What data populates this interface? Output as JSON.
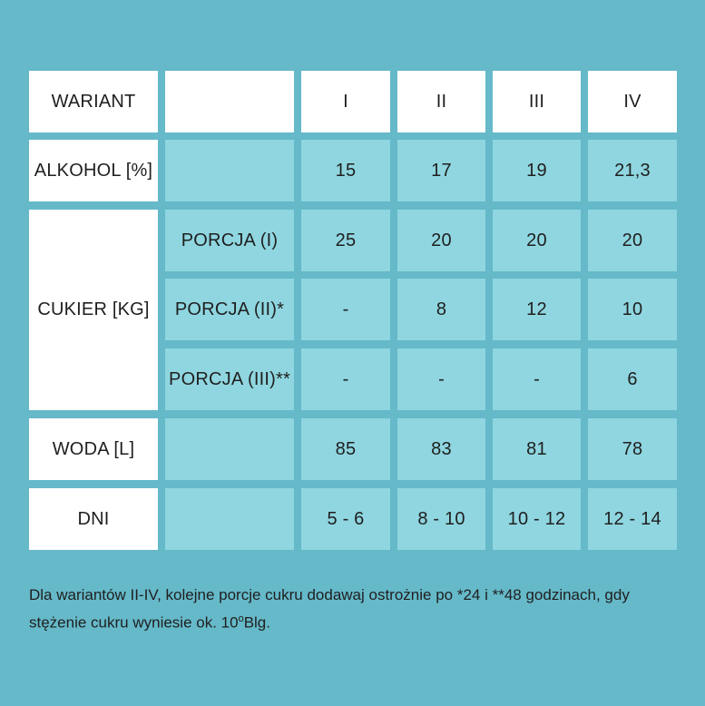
{
  "table": {
    "header": {
      "label": "WARIANT",
      "empty": "",
      "variants": [
        "I",
        "II",
        "III",
        "IV"
      ]
    },
    "rows": {
      "alkohol": {
        "label": "ALKOHOL [%]",
        "values": [
          "15",
          "17",
          "19",
          "21,3"
        ]
      },
      "cukier": {
        "label": "CUKIER [KG]",
        "portions": [
          {
            "label": "PORCJA (I)",
            "values": [
              "25",
              "20",
              "20",
              "20"
            ]
          },
          {
            "label": "PORCJA (II)*",
            "values": [
              "-",
              "8",
              "12",
              "10"
            ]
          },
          {
            "label": "PORCJA (III)**",
            "values": [
              "-",
              "-",
              "-",
              "6"
            ]
          }
        ]
      },
      "woda": {
        "label": "WODA [L]",
        "values": [
          "85",
          "83",
          "81",
          "78"
        ]
      },
      "dni": {
        "label": "DNI",
        "values": [
          "5 - 6",
          "8 - 10",
          "10 - 12",
          "12 - 14"
        ]
      }
    }
  },
  "note": {
    "text": "Dla wariantów II-IV, kolejne porcje cukru dodawaj ostrożnie po *24 i **48 godzinach, gdy stężenie cukru wyniesie ok. 10",
    "sup": "o",
    "unit": "Blg."
  },
  "colors": {
    "background": "#65b9c9",
    "cell_white": "#ffffff",
    "cell_light": "#8fd6e0",
    "text": "#1f1f1f"
  }
}
